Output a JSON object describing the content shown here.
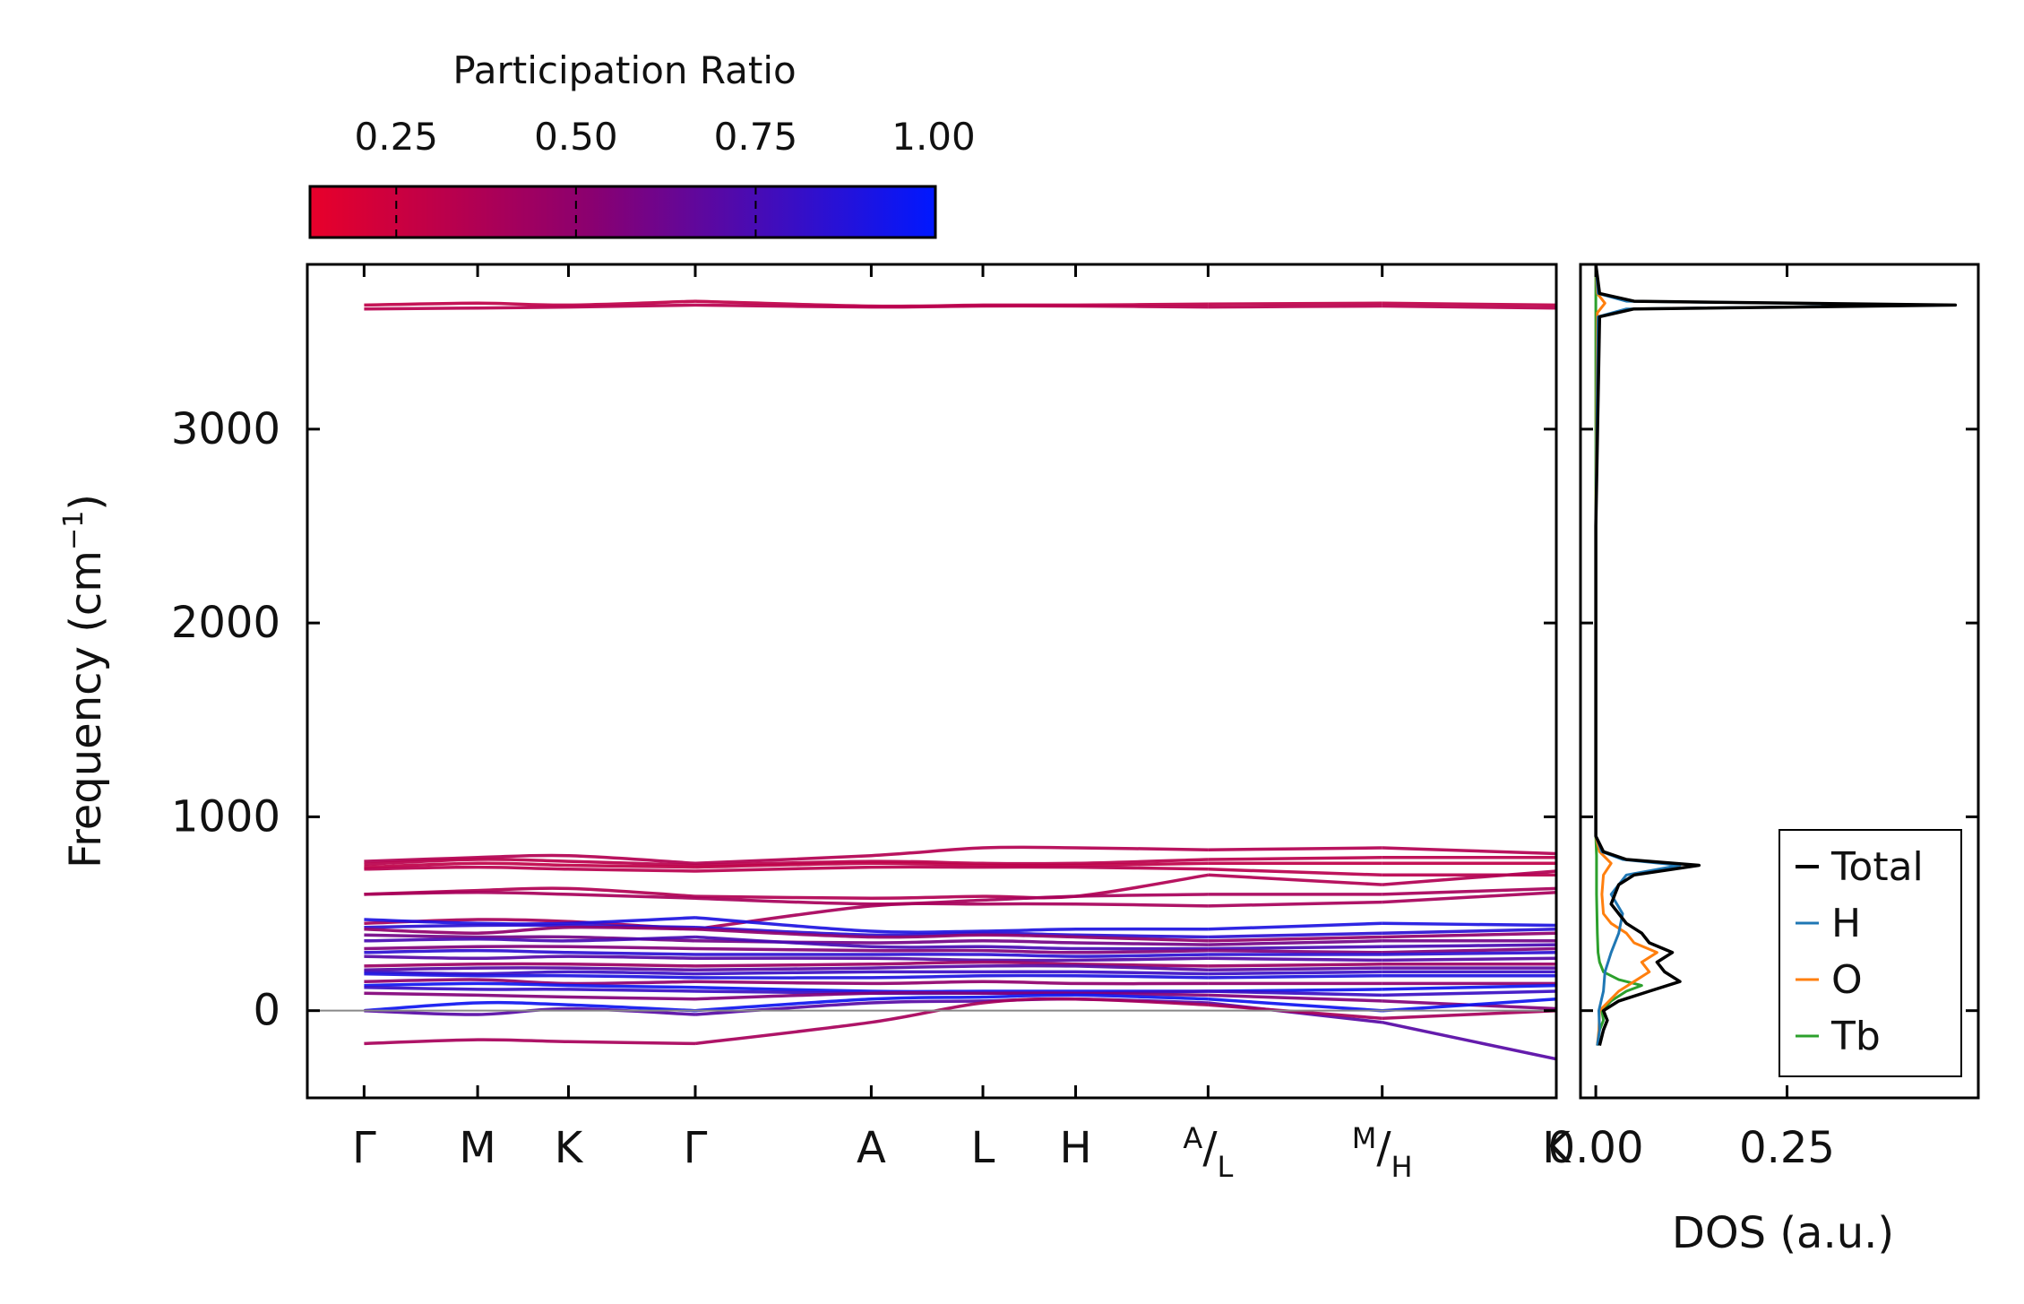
{
  "colorbar": {
    "title": "Participation Ratio",
    "ticks": [
      {
        "value": 0.25,
        "label": "0.25"
      },
      {
        "value": 0.5,
        "label": "0.50"
      },
      {
        "value": 0.75,
        "label": "0.75"
      },
      {
        "value": 1.0,
        "label": "1.00"
      }
    ],
    "range": [
      0.13,
      1.0
    ],
    "color_low": "#e8002a",
    "color_mid": "#8a0070",
    "color_high": "#0018ff"
  },
  "chart_data": [
    {
      "type": "line",
      "name": "phonon-band-structure",
      "ylabel": "Frequency (cm⁻¹)",
      "ylabel_parts": {
        "main": "Frequency (cm",
        "sup": "−1",
        "close": ")"
      },
      "ylim": [
        -450,
        3850
      ],
      "yticks": [
        {
          "value": 0,
          "label": "0"
        },
        {
          "value": 1000,
          "label": "1000"
        },
        {
          "value": 2000,
          "label": "2000"
        },
        {
          "value": 3000,
          "label": "3000"
        }
      ],
      "xlim": [
        -0.3,
        6.3
      ],
      "kpoints": [
        {
          "x": 0.0,
          "label": "Γ"
        },
        {
          "x": 0.6,
          "label": "M"
        },
        {
          "x": 1.08,
          "label": "K"
        },
        {
          "x": 1.75,
          "label": "Γ"
        },
        {
          "x": 2.68,
          "label": "A"
        },
        {
          "x": 3.27,
          "label": "L"
        },
        {
          "x": 3.76,
          "label": "H"
        },
        {
          "x": 4.46,
          "label_sup": "A",
          "label": "/",
          "label_sub": "L"
        },
        {
          "x": 5.38,
          "label_sup": "M",
          "label": "/",
          "label_sub": "H"
        },
        {
          "x": 6.3,
          "label": "K"
        }
      ],
      "segments": [
        [
          0.0,
          1.75
        ],
        [
          1.75,
          4.46
        ],
        [
          4.46,
          5.38
        ],
        [
          5.38,
          6.3
        ]
      ],
      "zero_line": 0,
      "bands": [
        {
          "pr": 0.3,
          "y": [
            3640,
            3650,
            3640,
            3660,
            3635,
            3640,
            3640,
            3645,
            3650,
            3640
          ]
        },
        {
          "pr": 0.33,
          "y": [
            3620,
            3625,
            3630,
            3640,
            3630,
            3635,
            3635,
            3630,
            3635,
            3625
          ]
        },
        {
          "pr": 0.35,
          "y": [
            770,
            790,
            800,
            760,
            800,
            840,
            840,
            830,
            840,
            810
          ]
        },
        {
          "pr": 0.32,
          "y": [
            755,
            780,
            770,
            750,
            770,
            760,
            760,
            780,
            790,
            790
          ]
        },
        {
          "pr": 0.3,
          "y": [
            740,
            760,
            750,
            740,
            760,
            750,
            750,
            760,
            760,
            760
          ]
        },
        {
          "pr": 0.33,
          "y": [
            730,
            740,
            730,
            720,
            740,
            740,
            740,
            730,
            700,
            700
          ]
        },
        {
          "pr": 0.36,
          "y": [
            600,
            620,
            630,
            590,
            580,
            590,
            590,
            700,
            650,
            720
          ]
        },
        {
          "pr": 0.4,
          "y": [
            600,
            610,
            600,
            580,
            550,
            570,
            590,
            600,
            600,
            630
          ]
        },
        {
          "pr": 0.4,
          "y": [
            450,
            470,
            460,
            420,
            540,
            550,
            550,
            540,
            560,
            610
          ]
        },
        {
          "pr": 0.9,
          "y": [
            470,
            450,
            450,
            480,
            410,
            410,
            420,
            420,
            450,
            440
          ]
        },
        {
          "pr": 0.85,
          "y": [
            430,
            440,
            440,
            430,
            390,
            400,
            390,
            380,
            400,
            420
          ]
        },
        {
          "pr": 0.5,
          "y": [
            420,
            400,
            430,
            420,
            380,
            390,
            380,
            360,
            380,
            400
          ]
        },
        {
          "pr": 0.6,
          "y": [
            390,
            380,
            380,
            360,
            350,
            360,
            350,
            340,
            360,
            360
          ]
        },
        {
          "pr": 0.75,
          "y": [
            360,
            370,
            360,
            380,
            330,
            330,
            320,
            320,
            330,
            340
          ]
        },
        {
          "pr": 0.55,
          "y": [
            320,
            330,
            330,
            320,
            310,
            310,
            300,
            310,
            300,
            320
          ]
        },
        {
          "pr": 0.85,
          "y": [
            300,
            310,
            300,
            290,
            290,
            290,
            280,
            290,
            290,
            300
          ]
        },
        {
          "pr": 0.7,
          "y": [
            280,
            270,
            280,
            270,
            270,
            260,
            260,
            270,
            260,
            270
          ]
        },
        {
          "pr": 0.45,
          "y": [
            230,
            240,
            240,
            230,
            240,
            250,
            240,
            230,
            240,
            240
          ]
        },
        {
          "pr": 0.7,
          "y": [
            210,
            220,
            220,
            210,
            220,
            230,
            230,
            210,
            220,
            220
          ]
        },
        {
          "pr": 0.8,
          "y": [
            200,
            190,
            200,
            190,
            200,
            200,
            200,
            190,
            200,
            200
          ]
        },
        {
          "pr": 0.9,
          "y": [
            190,
            180,
            180,
            170,
            170,
            180,
            180,
            170,
            180,
            180
          ]
        },
        {
          "pr": 0.5,
          "y": [
            150,
            160,
            140,
            150,
            140,
            150,
            140,
            140,
            140,
            140
          ]
        },
        {
          "pr": 0.95,
          "y": [
            130,
            140,
            130,
            120,
            100,
            100,
            100,
            100,
            110,
            130
          ]
        },
        {
          "pr": 0.8,
          "y": [
            120,
            110,
            110,
            100,
            90,
            90,
            90,
            100,
            80,
            100
          ]
        },
        {
          "pr": 0.55,
          "y": [
            90,
            80,
            70,
            60,
            90,
            90,
            90,
            80,
            50,
            10
          ]
        },
        {
          "pr": 0.95,
          "y": [
            0,
            40,
            30,
            0,
            60,
            70,
            80,
            60,
            0,
            60
          ]
        },
        {
          "pr": 0.7,
          "y": [
            0,
            -20,
            10,
            -20,
            40,
            50,
            60,
            40,
            -60,
            -250
          ]
        },
        {
          "pr": 0.4,
          "y": [
            -170,
            -150,
            -160,
            -170,
            -60,
            40,
            60,
            30,
            -40,
            0
          ]
        }
      ]
    },
    {
      "type": "line",
      "name": "density-of-states",
      "xlabel": "DOS (a.u.)",
      "xlim": [
        -0.02,
        0.5
      ],
      "xticks": [
        {
          "value": 0.0,
          "label": "0.00"
        },
        {
          "value": 0.25,
          "label": "0.25"
        }
      ],
      "ylim": [
        -450,
        3850
      ],
      "legend_position": "bottom-right",
      "series": [
        {
          "name": "Total",
          "color": "#000000",
          "freq": [
            -180,
            -100,
            -50,
            0,
            50,
            100,
            150,
            200,
            250,
            300,
            350,
            400,
            450,
            500,
            550,
            600,
            650,
            700,
            750,
            780,
            820,
            900,
            1500,
            2500,
            3580,
            3620,
            3640,
            3660,
            3700,
            3850
          ],
          "dos": [
            0.005,
            0.01,
            0.015,
            0.01,
            0.03,
            0.07,
            0.11,
            0.09,
            0.08,
            0.1,
            0.07,
            0.06,
            0.04,
            0.03,
            0.02,
            0.025,
            0.03,
            0.05,
            0.135,
            0.04,
            0.01,
            0.0,
            0.0,
            0.0,
            0.005,
            0.05,
            0.47,
            0.05,
            0.005,
            0.0
          ]
        },
        {
          "name": "H",
          "color": "#1f77b4",
          "freq": [
            -180,
            -100,
            0,
            100,
            200,
            300,
            400,
            500,
            600,
            700,
            750,
            780,
            820,
            900,
            2500,
            3580,
            3620,
            3640,
            3660,
            3700,
            3850
          ],
          "dos": [
            0.002,
            0.005,
            0.004,
            0.01,
            0.012,
            0.02,
            0.03,
            0.035,
            0.02,
            0.04,
            0.11,
            0.035,
            0.008,
            0.0,
            0.0,
            0.003,
            0.04,
            0.46,
            0.04,
            0.003,
            0.0
          ]
        },
        {
          "name": "O",
          "color": "#ff7f0e",
          "freq": [
            -180,
            -100,
            0,
            100,
            150,
            200,
            250,
            300,
            350,
            400,
            450,
            500,
            600,
            700,
            760,
            820,
            900,
            2500,
            3600,
            3650,
            3700,
            3850
          ],
          "dos": [
            0.002,
            0.004,
            0.005,
            0.03,
            0.05,
            0.07,
            0.06,
            0.08,
            0.05,
            0.04,
            0.02,
            0.01,
            0.008,
            0.01,
            0.02,
            0.005,
            0.0,
            0.0,
            0.002,
            0.012,
            0.002,
            0.0
          ]
        },
        {
          "name": "Tb",
          "color": "#2ca02c",
          "freq": [
            -180,
            -100,
            -50,
            0,
            50,
            100,
            130,
            160,
            200,
            250,
            300,
            400,
            600,
            800,
            900,
            3850
          ],
          "dos": [
            0.002,
            0.005,
            0.01,
            0.008,
            0.02,
            0.04,
            0.06,
            0.03,
            0.01,
            0.005,
            0.003,
            0.002,
            0.001,
            0.001,
            0.0,
            0.0
          ]
        }
      ]
    }
  ]
}
